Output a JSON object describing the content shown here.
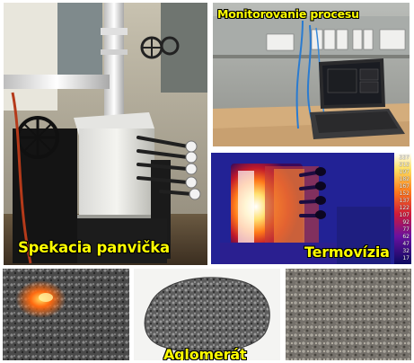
{
  "captions": {
    "main": "Spekacia panvička",
    "monitoring": "Monitorovanie procesu",
    "thermal": "Termovízia",
    "agglomerate": "Aglomerát"
  },
  "thermal_scale": [
    "227",
    "212",
    "197",
    "182",
    "167",
    "152",
    "137",
    "122",
    "107",
    "92",
    "77",
    "62",
    "47",
    "32",
    "17"
  ],
  "colors": {
    "caption": "#ffff00",
    "caption_outline": "#000000"
  }
}
